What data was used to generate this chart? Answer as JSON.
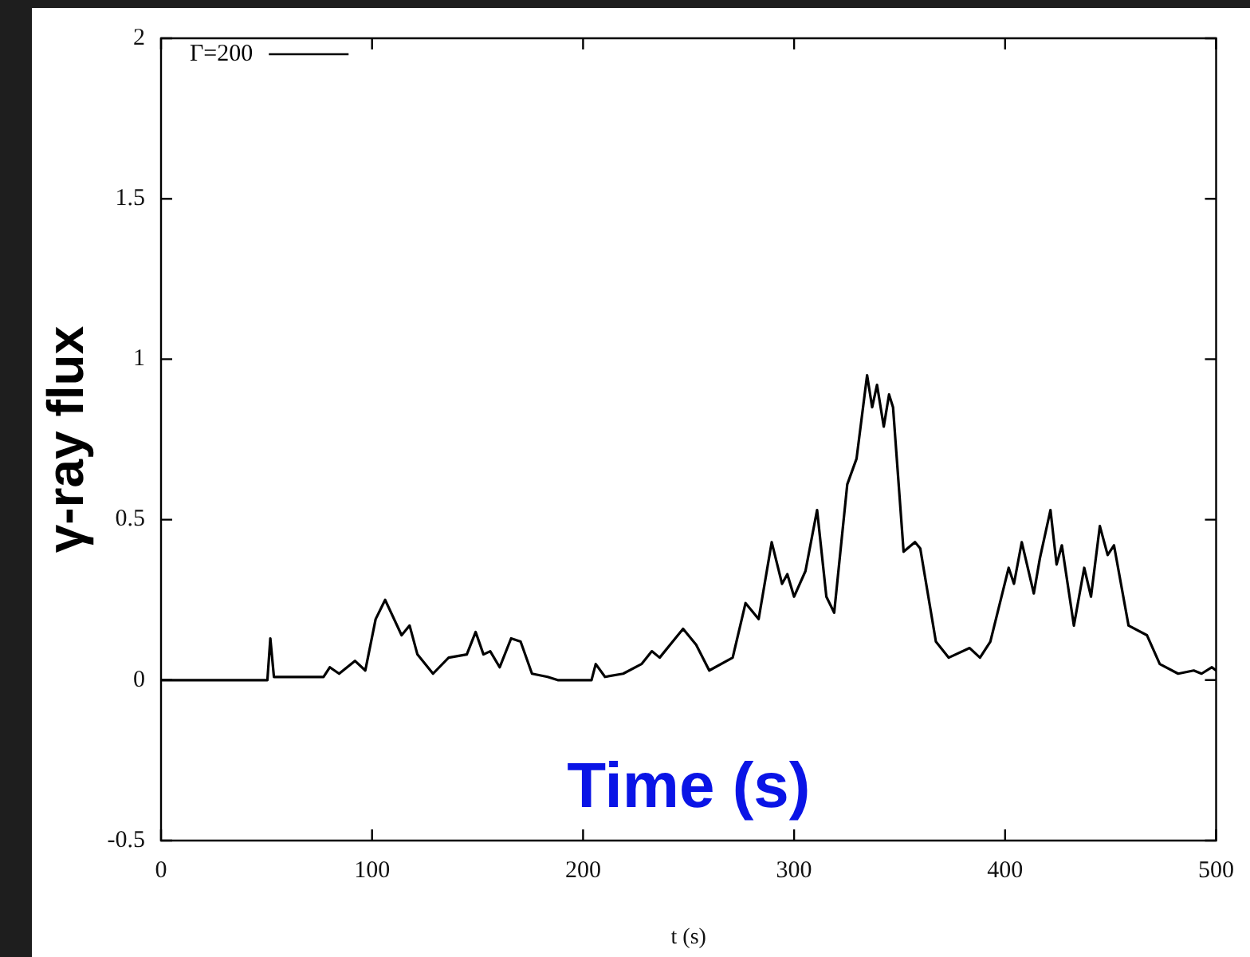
{
  "chart_data": {
    "type": "line",
    "xlabel": "t (s)",
    "ylabel": "γ-ray flux",
    "annotations": [
      "Time (s)"
    ],
    "legend": "top left",
    "grid": false,
    "marker": "none",
    "line_style": "solid",
    "xlim": [
      0,
      500
    ],
    "xticks": [
      0,
      100,
      200,
      300,
      400,
      500
    ],
    "ylim": [
      -0.5,
      2
    ],
    "yticks": [
      -0.5,
      0,
      0.5,
      1,
      1.5,
      2
    ],
    "series": [
      {
        "name": "Γ=200",
        "color": "#000000",
        "x": [
          0,
          50.4,
          51.8,
          53.5,
          77,
          80,
          84.4,
          91.9,
          96.8,
          101.7,
          106.2,
          114,
          117.8,
          121.5,
          128.9,
          136.3,
          144.9,
          149.1,
          152.8,
          156,
          160.5,
          165.9,
          170.4,
          175.8,
          183.2,
          188,
          204,
          206,
          210.4,
          219,
          227.7,
          232.6,
          236.3,
          243.7,
          247.4,
          253.6,
          259.8,
          270.9,
          277,
          283.2,
          289.4,
          294.3,
          296.8,
          300,
          305.4,
          310.9,
          315.3,
          319,
          325.2,
          329.6,
          334.6,
          337,
          339.3,
          342.5,
          345,
          346.9,
          351.9,
          357.3,
          359.8,
          367.2,
          373.3,
          383.2,
          388.1,
          393,
          401.7,
          404.2,
          407.9,
          413.6,
          416.5,
          421.5,
          424.4,
          426.9,
          432.6,
          437.5,
          440.7,
          444.9,
          448.6,
          451.6,
          458.5,
          467.2,
          473.3,
          482,
          489.4,
          493.1,
          498,
          500
        ],
        "values": [
          0,
          0,
          0.13,
          0.01,
          0.01,
          0.04,
          0.02,
          0.06,
          0.03,
          0.19,
          0.25,
          0.14,
          0.17,
          0.08,
          0.02,
          0.07,
          0.08,
          0.15,
          0.08,
          0.09,
          0.04,
          0.13,
          0.12,
          0.02,
          0.01,
          0,
          0,
          0.05,
          0.01,
          0.02,
          0.05,
          0.09,
          0.07,
          0.13,
          0.16,
          0.11,
          0.03,
          0.07,
          0.24,
          0.19,
          0.43,
          0.3,
          0.33,
          0.26,
          0.34,
          0.53,
          0.26,
          0.21,
          0.61,
          0.69,
          0.95,
          0.85,
          0.92,
          0.79,
          0.89,
          0.85,
          0.4,
          0.43,
          0.41,
          0.12,
          0.07,
          0.1,
          0.07,
          0.12,
          0.35,
          0.3,
          0.43,
          0.27,
          0.38,
          0.53,
          0.36,
          0.42,
          0.17,
          0.35,
          0.26,
          0.48,
          0.39,
          0.42,
          0.17,
          0.14,
          0.05,
          0.02,
          0.03,
          0.02,
          0.04,
          0.03
        ]
      }
    ]
  }
}
